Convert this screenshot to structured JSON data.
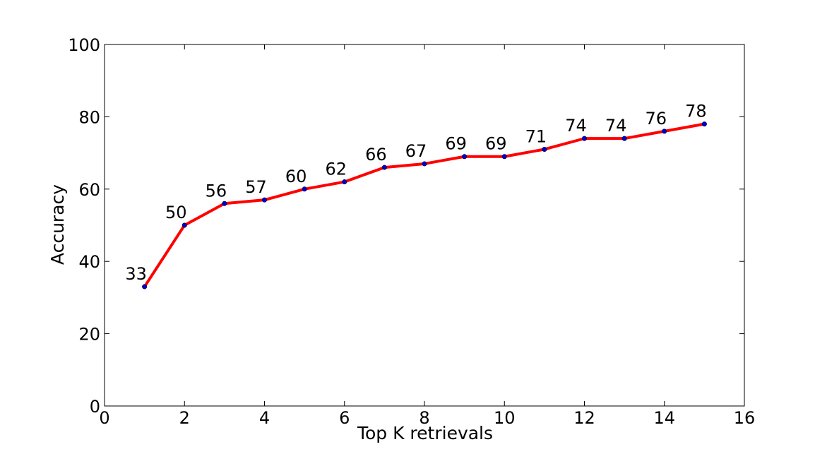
{
  "chart_data": {
    "type": "line",
    "title": "",
    "xlabel": "Top K retrievals",
    "ylabel": "Accuracy",
    "xlim": [
      0,
      16
    ],
    "ylim": [
      0,
      100
    ],
    "x_ticks": [
      0,
      2,
      4,
      6,
      8,
      10,
      12,
      14,
      16
    ],
    "y_ticks": [
      0,
      20,
      40,
      60,
      80,
      100
    ],
    "grid": false,
    "legend": "none",
    "series": [
      {
        "x": [
          1,
          2,
          3,
          4,
          5,
          6,
          7,
          8,
          9,
          10,
          11,
          12,
          13,
          14,
          15
        ],
        "values": [
          33,
          50,
          56,
          57,
          60,
          62,
          66,
          67,
          69,
          69,
          71,
          74,
          74,
          76,
          78
        ],
        "line_color": "#ff0000",
        "marker_color": "#0000cc"
      }
    ],
    "data_labels": [
      "33",
      "50",
      "56",
      "57",
      "60",
      "62",
      "66",
      "67",
      "69",
      "69",
      "71",
      "74",
      "74",
      "76",
      "78"
    ]
  }
}
